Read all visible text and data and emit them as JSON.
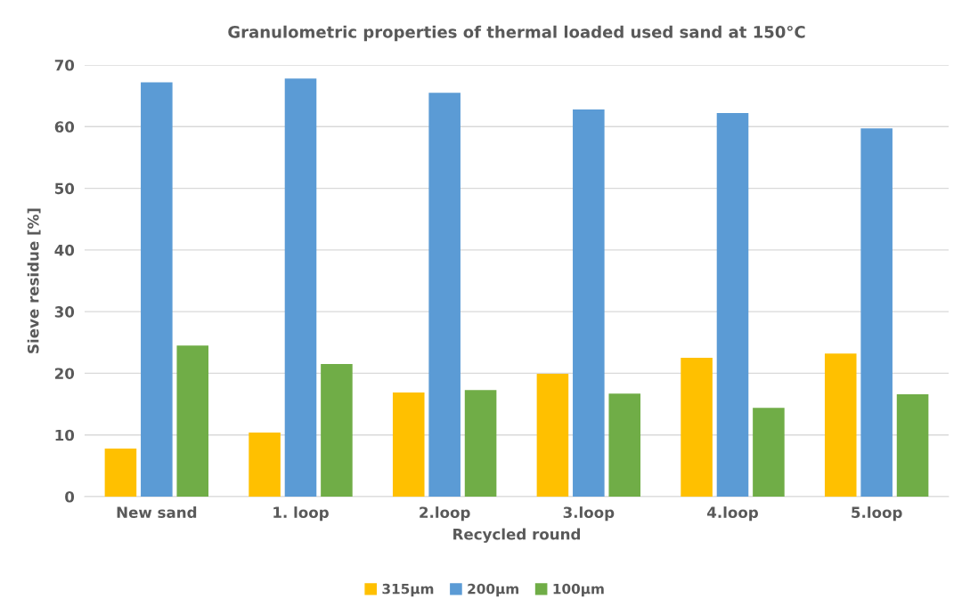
{
  "chart_data": {
    "type": "bar",
    "title": "Granulometric properties of thermal loaded used sand at 150°C",
    "xlabel": "Recycled round",
    "ylabel": "Sieve residue [%]",
    "categories": [
      "New sand",
      "1. loop",
      "2.loop",
      "3.loop",
      "4.loop",
      "5.loop"
    ],
    "series": [
      {
        "name": "315µm",
        "color": "#ffc000",
        "values": [
          7.8,
          10.4,
          16.9,
          19.9,
          22.5,
          23.2
        ]
      },
      {
        "name": "200µm",
        "color": "#5b9bd5",
        "values": [
          67.2,
          67.8,
          65.5,
          62.8,
          62.2,
          59.7
        ]
      },
      {
        "name": "100µm",
        "color": "#70ad47",
        "values": [
          24.5,
          21.5,
          17.3,
          16.7,
          14.4,
          16.6
        ]
      }
    ],
    "ylim": [
      0,
      70
    ],
    "yticks": [
      0,
      10,
      20,
      30,
      40,
      50,
      60,
      70
    ],
    "grid": "y",
    "legend": "bottom"
  }
}
